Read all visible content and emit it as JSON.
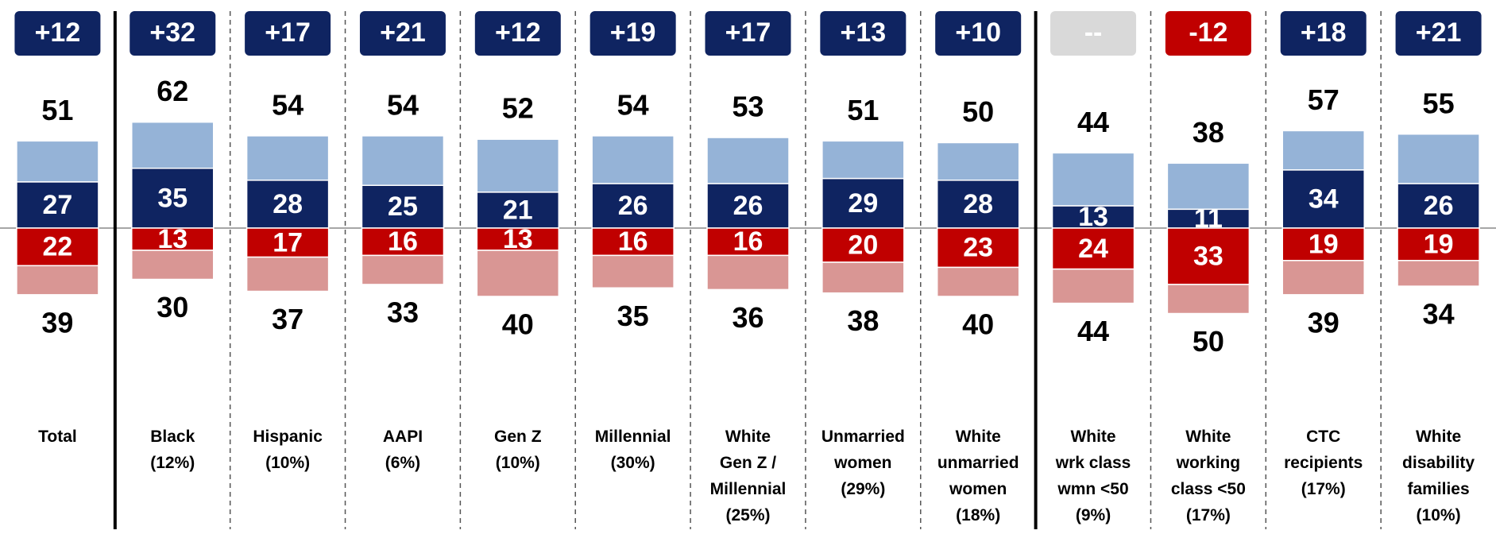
{
  "chart_data": {
    "type": "diverging-stacked-bar",
    "categories": [
      [
        "Total"
      ],
      [
        "Black",
        "(12%)"
      ],
      [
        "Hispanic",
        "(10%)"
      ],
      [
        "AAPI",
        "(6%)"
      ],
      [
        "Gen Z",
        "(10%)"
      ],
      [
        "Millennial",
        "(30%)"
      ],
      [
        "White",
        "Gen Z /",
        "Millennial",
        "(25%)"
      ],
      [
        "Unmarried",
        "women",
        "(29%)"
      ],
      [
        "White",
        "unmarried",
        "women",
        "(18%)"
      ],
      [
        "White",
        "wrk class",
        "wmn <50",
        "(9%)"
      ],
      [
        "White",
        "working",
        "class <50",
        "(17%)"
      ],
      [
        "CTC",
        "recipients",
        "(17%)"
      ],
      [
        "White",
        "disability",
        "families",
        "(10%)"
      ]
    ],
    "net": [
      "+12",
      "+32",
      "+17",
      "+21",
      "+12",
      "+19",
      "+17",
      "+13",
      "+10",
      "--",
      "-12",
      "+18",
      "+21"
    ],
    "net_colors": [
      "#0f2461",
      "#0f2461",
      "#0f2461",
      "#0f2461",
      "#0f2461",
      "#0f2461",
      "#0f2461",
      "#0f2461",
      "#0f2461",
      "#d9d9d9",
      "#c00000",
      "#0f2461",
      "#0f2461"
    ],
    "approve_total": {
      "color": "#95b3d7",
      "values": [
        51,
        62,
        54,
        54,
        52,
        54,
        53,
        51,
        50,
        44,
        38,
        57,
        55
      ]
    },
    "strong_approve": {
      "color": "#0f2461",
      "values": [
        27,
        35,
        28,
        25,
        21,
        26,
        26,
        29,
        28,
        13,
        11,
        34,
        26
      ]
    },
    "strong_disapprove": {
      "color": "#c00000",
      "values": [
        22,
        13,
        17,
        16,
        13,
        16,
        16,
        20,
        23,
        24,
        33,
        19,
        19
      ]
    },
    "disapprove_total": {
      "color": "#d99694",
      "values": [
        39,
        30,
        37,
        33,
        40,
        35,
        36,
        38,
        40,
        44,
        50,
        39,
        34
      ]
    },
    "solid_separators_after": [
      0,
      8
    ]
  }
}
